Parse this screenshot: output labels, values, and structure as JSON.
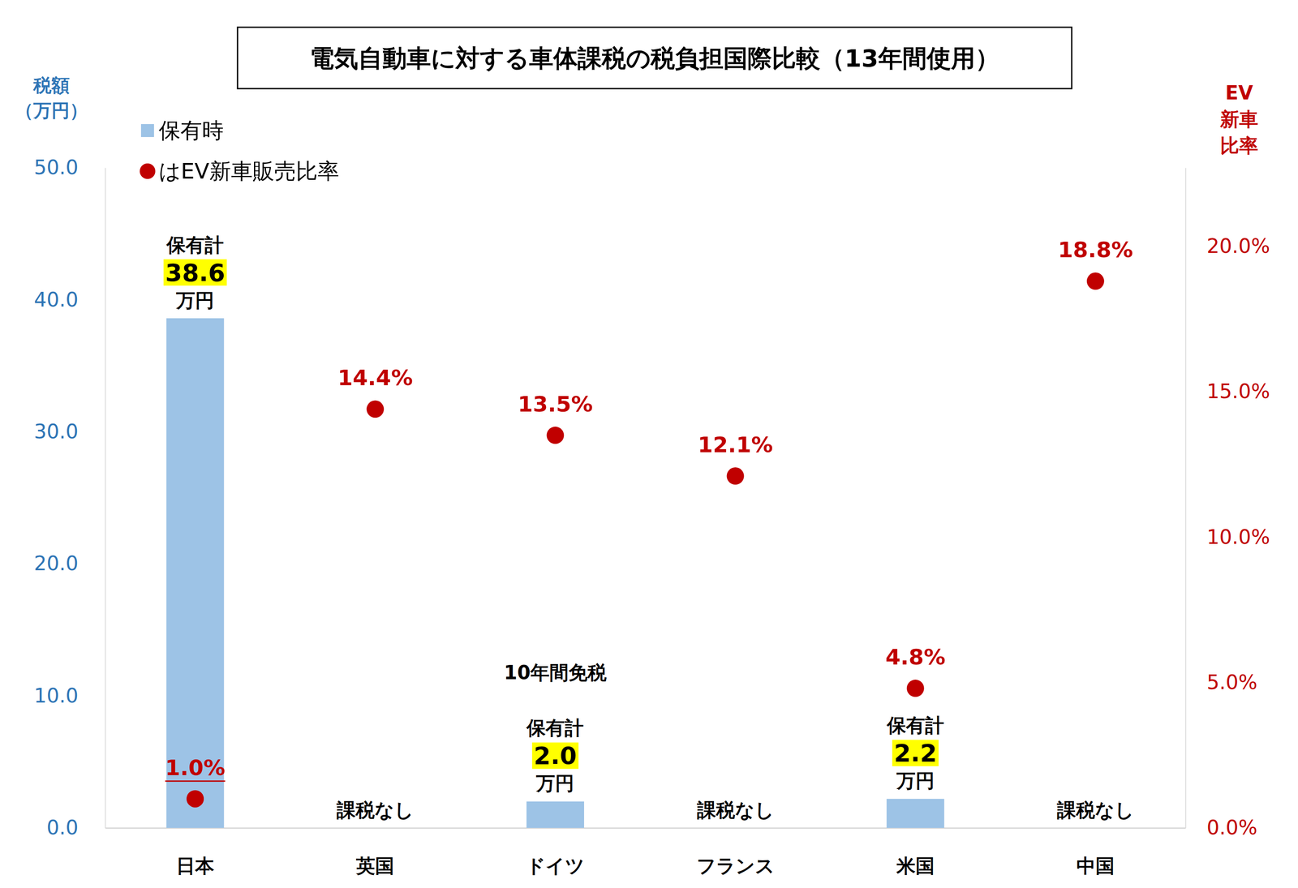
{
  "chart_data": {
    "type": "bar",
    "title": "電気自動車に対する車体課税の税負担国際比較（13年間使用）",
    "y_label": "税額\n（万円）",
    "y2_label": "EV\n新車\n比率",
    "categories": [
      "日本",
      "英国",
      "ドイツ",
      "フランス",
      "米国",
      "中国"
    ],
    "series": [
      {
        "name": "保有時",
        "type": "bar",
        "color": "#9dc3e6",
        "values": [
          38.6,
          0,
          2.0,
          0,
          2.2,
          0
        ],
        "value_labels": [
          "保有計\n38.6\n万円",
          "課税なし",
          "保有計\n2.0\n万円",
          "課税なし",
          "保有計\n2.2\n万円",
          "課税なし"
        ],
        "data_labels": true
      },
      {
        "name": "はEV新車販売比率",
        "type": "scatter",
        "axis": "y2",
        "color": "#c00000",
        "marker": "circle",
        "values": [
          1.0,
          14.4,
          13.5,
          12.1,
          4.8,
          18.8
        ],
        "value_labels": [
          "1.0%",
          "14.4%",
          "13.5%",
          "12.1%",
          "4.8%",
          "18.8%"
        ],
        "data_labels": true
      }
    ],
    "ylim": [
      0,
      50
    ],
    "yticks": [
      {
        "value": 0,
        "label": "0.0"
      },
      {
        "value": 10,
        "label": "10.0"
      },
      {
        "value": 20,
        "label": "20.0"
      },
      {
        "value": 30,
        "label": "30.0"
      },
      {
        "value": 40,
        "label": "40.0"
      },
      {
        "value": 50,
        "label": "50.0"
      }
    ],
    "y2lim": [
      0,
      22.7
    ],
    "y2ticks": [
      {
        "value": 0,
        "label": "0.0%"
      },
      {
        "value": 5,
        "label": "5.0%"
      },
      {
        "value": 10,
        "label": "10.0%"
      },
      {
        "value": 15,
        "label": "15.0%"
      },
      {
        "value": 20,
        "label": "20.0%"
      }
    ],
    "annotations": [
      {
        "text": "10年間免税",
        "x": "ドイツ"
      }
    ],
    "legend": "top-left",
    "grid": false
  }
}
